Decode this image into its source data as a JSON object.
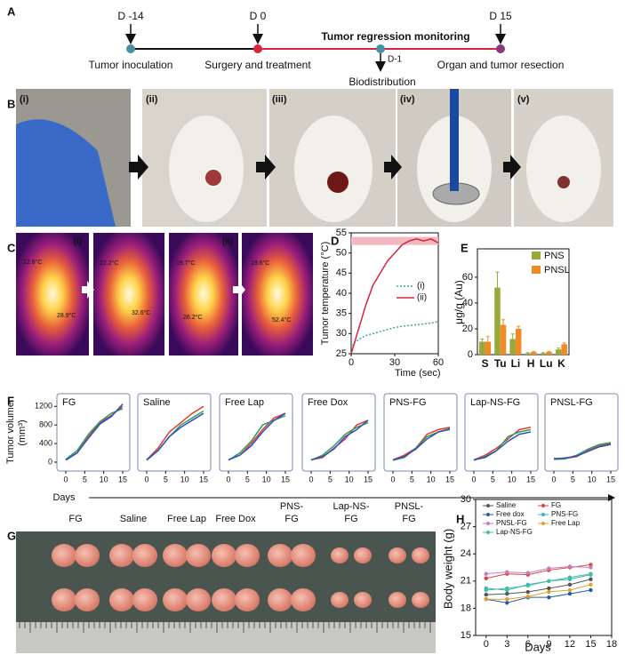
{
  "panels": [
    "A",
    "B",
    "C",
    "D",
    "E",
    "F",
    "G",
    "H"
  ],
  "timeline": {
    "events": [
      {
        "day": "D -14",
        "label": "Tumor inoculation"
      },
      {
        "day": "D 0",
        "label": "Surgery and treatment"
      },
      {
        "day": "D 15",
        "label": "Organ and tumor resection"
      }
    ],
    "phase": "Tumor regression monitoring",
    "side_event": {
      "day": "D-1",
      "label": "Biodistribution"
    }
  },
  "surgery_steps": [
    "(i)",
    "(ii)",
    "(iii)",
    "(iv)",
    "(v)"
  ],
  "thermal": [
    {
      "label": "(i)",
      "temps": [
        [
          "22.8°C",
          "28.9°C"
        ],
        [
          "22.2°C",
          "32.6°C"
        ]
      ]
    },
    {
      "label": "(ii)",
      "temps": [
        [
          "19.7°C",
          "26.2°C"
        ],
        [
          "19.6°C",
          "52.4°C"
        ]
      ]
    }
  ],
  "tumor_groups": [
    [
      "FG"
    ],
    [
      "Saline"
    ],
    [
      "Free Lap"
    ],
    [
      "Free Dox"
    ],
    [
      "PNS-",
      "FG"
    ],
    [
      "Lap-NS-",
      "FG"
    ],
    [
      "PNSL-",
      "FG"
    ]
  ],
  "chart_data": [
    {
      "type": "line",
      "y_label": "Tumor temperature (°C)",
      "x_label": "Time (sec)",
      "x": [
        0,
        5,
        10,
        15,
        20,
        25,
        30,
        35,
        40,
        45,
        50,
        55,
        60
      ],
      "xlim": [
        0,
        60
      ],
      "xticks": [
        0,
        30,
        60
      ],
      "ylim": [
        25,
        55
      ],
      "yticks": [
        25,
        30,
        35,
        40,
        45,
        50,
        55
      ],
      "highlight_band": [
        52,
        54
      ],
      "band_color": "#f2b8c0",
      "series": [
        {
          "name": "(i)",
          "color": "#3aa8a0",
          "style": "dotted",
          "values": [
            27,
            28.5,
            29.5,
            30,
            30.5,
            31,
            31.5,
            31.8,
            32,
            32.2,
            32.4,
            32.6,
            33
          ]
        },
        {
          "name": "(ii)",
          "color": "#d8243c",
          "style": "solid",
          "values": [
            25,
            31,
            37,
            42,
            45,
            48,
            50,
            52,
            53,
            53.5,
            53,
            53.5,
            52.5
          ]
        }
      ]
    },
    {
      "type": "bar",
      "y_label": "μg/g (Au)",
      "categories": [
        "S",
        "Tu",
        "Li",
        "H",
        "Lu",
        "K"
      ],
      "ylim": [
        0,
        82
      ],
      "yticks": [
        0,
        20,
        40,
        60
      ],
      "series": [
        {
          "name": "PNS",
          "color": "#9aa83a",
          "values": [
            10,
            52,
            12,
            1,
            1,
            4
          ],
          "errors": [
            2,
            12,
            4,
            0.5,
            0.5,
            1
          ]
        },
        {
          "name": "PNSL",
          "color": "#f08a24",
          "values": [
            10,
            23,
            20,
            2,
            2,
            8
          ],
          "errors": [
            4,
            4,
            2,
            0.5,
            0.5,
            1
          ]
        }
      ]
    },
    {
      "type": "line",
      "title": "FG",
      "y_label": [
        "Tumor volume",
        "(mm³)"
      ],
      "x_label": "Days",
      "x": [
        0,
        3,
        6,
        9,
        12,
        15
      ],
      "xlim": [
        0,
        15
      ],
      "xticks": [
        0,
        5,
        10,
        15
      ],
      "ylim": [
        0,
        1300
      ],
      "yticks": [
        0,
        400,
        800,
        1200
      ],
      "series": [
        {
          "color": "#e8382c",
          "values": [
            50,
            200,
            550,
            850,
            1000,
            1200
          ]
        },
        {
          "color": "#2ca05a",
          "values": [
            60,
            250,
            600,
            870,
            1050,
            1150
          ]
        },
        {
          "color": "#3050c0",
          "values": [
            40,
            200,
            520,
            820,
            980,
            1250
          ]
        }
      ]
    },
    {
      "type": "line",
      "title": "Saline",
      "x": [
        0,
        3,
        6,
        9,
        12,
        15
      ],
      "xlim": [
        0,
        15
      ],
      "xticks": [
        0,
        5,
        10,
        15
      ],
      "ylim": [
        0,
        1300
      ],
      "series": [
        {
          "color": "#e8382c",
          "values": [
            50,
            300,
            650,
            850,
            1050,
            1200
          ]
        },
        {
          "color": "#2ca05a",
          "values": [
            40,
            250,
            550,
            800,
            950,
            1100
          ]
        },
        {
          "color": "#3050c0",
          "values": [
            50,
            250,
            550,
            750,
            900,
            1050
          ]
        }
      ]
    },
    {
      "type": "line",
      "title": "Free Lap",
      "x": [
        0,
        3,
        6,
        9,
        12,
        15
      ],
      "xlim": [
        0,
        15
      ],
      "xticks": [
        0,
        5,
        10,
        15
      ],
      "ylim": [
        0,
        1300
      ],
      "series": [
        {
          "color": "#e8382c",
          "values": [
            50,
            150,
            400,
            700,
            950,
            1050
          ]
        },
        {
          "color": "#2ca05a",
          "values": [
            40,
            200,
            450,
            800,
            900,
            1000
          ]
        },
        {
          "color": "#3050c0",
          "values": [
            50,
            150,
            350,
            650,
            900,
            1050
          ]
        }
      ]
    },
    {
      "type": "line",
      "title": "Free Dox",
      "x": [
        0,
        3,
        6,
        9,
        12,
        15
      ],
      "xlim": [
        0,
        15
      ],
      "xticks": [
        0,
        5,
        10,
        15
      ],
      "ylim": [
        0,
        1300
      ],
      "series": [
        {
          "color": "#e8382c",
          "values": [
            50,
            100,
            300,
            500,
            800,
            900
          ]
        },
        {
          "color": "#2ca05a",
          "values": [
            40,
            150,
            350,
            600,
            750,
            850
          ]
        },
        {
          "color": "#3050c0",
          "values": [
            50,
            120,
            280,
            550,
            700,
            900
          ]
        }
      ]
    },
    {
      "type": "line",
      "title": "PNS-FG",
      "x": [
        0,
        3,
        6,
        9,
        12,
        15
      ],
      "xlim": [
        0,
        15
      ],
      "xticks": [
        0,
        5,
        10,
        15
      ],
      "ylim": [
        0,
        1300
      ],
      "series": [
        {
          "color": "#e8382c",
          "values": [
            50,
            150,
            300,
            600,
            700,
            750
          ]
        },
        {
          "color": "#2ca05a",
          "values": [
            40,
            100,
            300,
            550,
            650,
            700
          ]
        },
        {
          "color": "#3050c0",
          "values": [
            50,
            120,
            280,
            500,
            650,
            720
          ]
        }
      ]
    },
    {
      "type": "line",
      "title": "Lap-NS-FG",
      "x": [
        0,
        3,
        6,
        9,
        12,
        15
      ],
      "xlim": [
        0,
        15
      ],
      "xticks": [
        0,
        5,
        10,
        15
      ],
      "ylim": [
        0,
        1300
      ],
      "series": [
        {
          "color": "#e8382c",
          "values": [
            50,
            150,
            300,
            500,
            700,
            750
          ]
        },
        {
          "color": "#2ca05a",
          "values": [
            40,
            120,
            250,
            550,
            650,
            700
          ]
        },
        {
          "color": "#3050c0",
          "values": [
            50,
            100,
            250,
            450,
            600,
            650
          ]
        }
      ]
    },
    {
      "type": "line",
      "title": "PNSL-FG",
      "x": [
        0,
        3,
        6,
        9,
        12,
        15
      ],
      "xlim": [
        0,
        15
      ],
      "xticks": [
        0,
        5,
        10,
        15
      ],
      "ylim": [
        0,
        1300
      ],
      "series": [
        {
          "color": "#e8382c",
          "values": [
            80,
            80,
            120,
            250,
            350,
            400
          ]
        },
        {
          "color": "#2ca05a",
          "values": [
            60,
            70,
            150,
            280,
            380,
            420
          ]
        },
        {
          "color": "#3050c0",
          "values": [
            70,
            90,
            130,
            230,
            330,
            380
          ]
        }
      ]
    },
    {
      "type": "line",
      "y_label": "Body weight (g)",
      "x_label": "Days",
      "markers": true,
      "x": [
        0,
        3,
        6,
        9,
        12,
        15
      ],
      "xlim": [
        -1.5,
        18
      ],
      "xticks": [
        0,
        3,
        6,
        9,
        12,
        15,
        18
      ],
      "ylim": [
        15,
        30
      ],
      "yticks": [
        15,
        18,
        21,
        24,
        27,
        30
      ],
      "series": [
        {
          "name": "Saline",
          "color": "#555555",
          "values": [
            19.5,
            19.6,
            19.8,
            20.2,
            20.6,
            21.2
          ]
        },
        {
          "name": "FG",
          "color": "#e04040",
          "values": [
            21.3,
            21.8,
            21.7,
            22.2,
            22.5,
            22.8
          ]
        },
        {
          "name": "Free dox",
          "color": "#2060a0",
          "values": [
            19.0,
            18.6,
            19.2,
            19.2,
            19.6,
            20.0
          ]
        },
        {
          "name": "PNS-FG",
          "color": "#40b0c0",
          "values": [
            20.2,
            20.0,
            20.6,
            21.0,
            21.2,
            21.7
          ]
        },
        {
          "name": "PNSL-FG",
          "color": "#c080c0",
          "values": [
            21.8,
            22.0,
            21.9,
            22.4,
            22.6,
            22.5
          ]
        },
        {
          "name": "Free Lap",
          "color": "#e0a030",
          "values": [
            19.0,
            19.0,
            19.3,
            19.8,
            20.0,
            20.6
          ]
        },
        {
          "name": "Lap-NS-FG",
          "color": "#40c0a0",
          "values": [
            20.0,
            20.2,
            20.5,
            21.0,
            21.4,
            21.8
          ]
        }
      ]
    }
  ]
}
